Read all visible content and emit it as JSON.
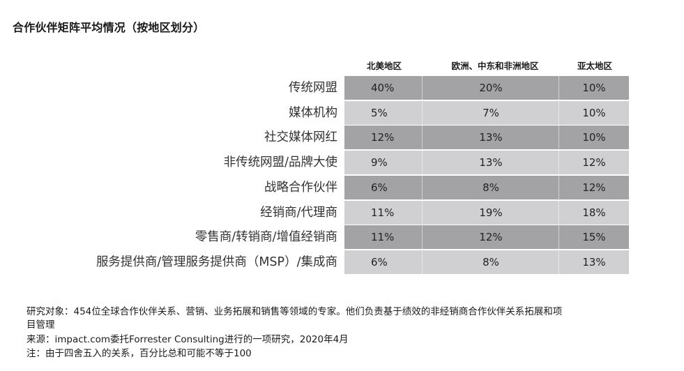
{
  "title": "合作伙伴矩阵平均情况（按地区划分）",
  "chart_data": {
    "type": "table",
    "columns": [
      "北美地区",
      "欧洲、中东和非洲地区",
      "亚太地区"
    ],
    "rows": [
      {
        "label": "传统网盟",
        "values": [
          "40%",
          "20%",
          "10%"
        ]
      },
      {
        "label": "媒体机构",
        "values": [
          "5%",
          "7%",
          "10%"
        ]
      },
      {
        "label": "社交媒体网红",
        "values": [
          "12%",
          "13%",
          "10%"
        ]
      },
      {
        "label": "非传统网盟/品牌大使",
        "values": [
          "9%",
          "13%",
          "12%"
        ]
      },
      {
        "label": "战略合作伙伴",
        "values": [
          "6%",
          "8%",
          "12%"
        ]
      },
      {
        "label": "经销商/代理商",
        "values": [
          "11%",
          "19%",
          "18%"
        ]
      },
      {
        "label": "零售商/转销商/增值经销商",
        "values": [
          "11%",
          "12%",
          "15%"
        ]
      },
      {
        "label": "服务提供商/管理服务提供商（MSP）/集成商",
        "values": [
          "6%",
          "8%",
          "13%"
        ]
      }
    ]
  },
  "notes": {
    "line1": "研究对象：454位全球合作伙伴关系、营销、业务拓展和销售等领域的专家。他们负责基于绩效的非经销商合作伙伴关系拓展和项",
    "line2": "目管理",
    "line3": "来源：impact.com委托Forrester Consulting进行的一项研究，2020年4月",
    "line4": "注：由于四舍五入的关系，百分比总和可能不等于100"
  },
  "colors": {
    "dark_row": "#a3a3a5",
    "light_row": "#d0d0d2"
  }
}
